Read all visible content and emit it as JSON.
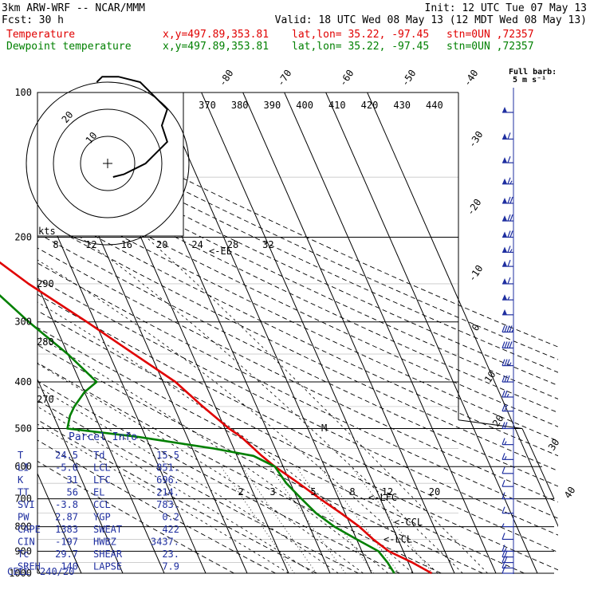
{
  "header": {
    "model": "3km ARW-WRF -- NCAR/MMM",
    "init": "Init: 12 UTC Tue 07 May 13",
    "fcst_label": "Fcst:",
    "fcst_value": "30 h",
    "valid": "Valid: 18 UTC Wed 08 May 13 (12 MDT Wed 08 May 13)",
    "temp_label": "Temperature",
    "dew_label": "Dewpoint temperature",
    "xy": "x,y=497.89,353.81",
    "latlon": "lat,lon= 35.22, -97.45",
    "stn": "stn=0UN ,72357",
    "barb_note_1": "Full barb:",
    "barb_note_2": "5 m s⁻¹"
  },
  "colors": {
    "temperature": "#e00000",
    "dewpoint": "#008000",
    "annotation": "#1f2fa0",
    "grid": "#000000"
  },
  "chart_data": {
    "type": "line",
    "title": "",
    "yscale": "log-pressure",
    "ylim": [
      1000,
      100
    ],
    "y_ticks": [
      "100",
      "200",
      "300",
      "400",
      "500",
      "600",
      "700",
      "800",
      "900",
      "1000"
    ],
    "isotherm_labels": [
      "-80",
      "-70",
      "-60",
      "-50",
      "-40",
      "-30",
      "-20",
      "-10",
      "0",
      "10",
      "20",
      "30",
      "40"
    ],
    "theta_labels": [
      "370",
      "380",
      "390",
      "400",
      "410",
      "420",
      "430",
      "440"
    ],
    "theta_left_labels": [
      "290",
      "280",
      "270"
    ],
    "speed_labels": [
      "8",
      "12",
      "16",
      "20",
      "24",
      "28",
      "32"
    ],
    "kts_label": "kts",
    "mixing_ratio_labels": [
      "2",
      "3",
      "5",
      "8",
      "12",
      "20"
    ],
    "hodograph_ring_labels": [
      "10",
      "20"
    ],
    "annotations": {
      "el": "<-EL",
      "lfc": "<-LFC",
      "ccl": "<-CCL",
      "lcl": "<-LCL",
      "mark": "M"
    },
    "series": [
      {
        "name": "Temperature",
        "key": "temperature",
        "points": [
          [
            1000,
            24.5
          ],
          [
            950,
            21
          ],
          [
            900,
            16.5
          ],
          [
            870,
            15
          ],
          [
            850,
            14
          ],
          [
            800,
            12
          ],
          [
            750,
            9
          ],
          [
            700,
            5.5
          ],
          [
            650,
            2
          ],
          [
            600,
            -2
          ],
          [
            570,
            -4
          ],
          [
            520,
            -7
          ],
          [
            500,
            -9
          ],
          [
            450,
            -13
          ],
          [
            400,
            -17
          ],
          [
            350,
            -24
          ],
          [
            300,
            -32
          ],
          [
            250,
            -42
          ],
          [
            210,
            -50
          ],
          [
            200,
            -53
          ],
          [
            185,
            -56
          ],
          [
            170,
            -58
          ],
          [
            150,
            -60
          ],
          [
            130,
            -62
          ],
          [
            115,
            -63
          ],
          [
            100,
            -63
          ]
        ]
      },
      {
        "name": "Dewpoint temperature",
        "key": "dewpoint",
        "points": [
          [
            1000,
            15.5
          ],
          [
            950,
            15
          ],
          [
            900,
            14
          ],
          [
            850,
            10
          ],
          [
            800,
            6
          ],
          [
            750,
            3
          ],
          [
            700,
            1
          ],
          [
            650,
            -1
          ],
          [
            600,
            -2
          ],
          [
            570,
            -6
          ],
          [
            550,
            -15
          ],
          [
            520,
            -32
          ],
          [
            500,
            -48
          ],
          [
            470,
            -46
          ],
          [
            450,
            -44
          ],
          [
            420,
            -40
          ],
          [
            400,
            -36
          ],
          [
            350,
            -40
          ],
          [
            300,
            -46
          ],
          [
            250,
            -52
          ],
          [
            200,
            -60
          ],
          [
            170,
            -64
          ],
          [
            150,
            -68
          ],
          [
            130,
            -70
          ],
          [
            115,
            -71
          ],
          [
            100,
            -71
          ]
        ]
      }
    ],
    "wind_barbs": [
      {
        "p": 110,
        "flags": 1,
        "full": 0,
        "half": 0
      },
      {
        "p": 125,
        "flags": 1,
        "full": 1,
        "half": 0
      },
      {
        "p": 140,
        "flags": 1,
        "full": 1,
        "half": 0
      },
      {
        "p": 155,
        "flags": 1,
        "full": 1,
        "half": 1
      },
      {
        "p": 170,
        "flags": 1,
        "full": 2,
        "half": 0
      },
      {
        "p": 185,
        "flags": 1,
        "full": 2,
        "half": 0
      },
      {
        "p": 200,
        "flags": 1,
        "full": 2,
        "half": 0
      },
      {
        "p": 215,
        "flags": 1,
        "full": 1,
        "half": 1
      },
      {
        "p": 230,
        "flags": 1,
        "full": 1,
        "half": 0
      },
      {
        "p": 250,
        "flags": 1,
        "full": 1,
        "half": 0
      },
      {
        "p": 270,
        "flags": 1,
        "full": 0,
        "half": 1
      },
      {
        "p": 290,
        "flags": 1,
        "full": 0,
        "half": 0
      },
      {
        "p": 315,
        "flags": 0,
        "full": 4,
        "half": 1
      },
      {
        "p": 340,
        "flags": 0,
        "full": 4,
        "half": 0
      },
      {
        "p": 370,
        "flags": 0,
        "full": 3,
        "half": 1
      },
      {
        "p": 400,
        "flags": 0,
        "full": 3,
        "half": 0
      },
      {
        "p": 430,
        "flags": 0,
        "full": 2,
        "half": 1
      },
      {
        "p": 460,
        "flags": 0,
        "full": 2,
        "half": 0
      },
      {
        "p": 500,
        "flags": 0,
        "full": 2,
        "half": 0
      },
      {
        "p": 540,
        "flags": 0,
        "full": 1,
        "half": 1
      },
      {
        "p": 580,
        "flags": 0,
        "full": 1,
        "half": 1
      },
      {
        "p": 620,
        "flags": 0,
        "full": 1,
        "half": 0
      },
      {
        "p": 660,
        "flags": 0,
        "full": 1,
        "half": 0
      },
      {
        "p": 700,
        "flags": 0,
        "full": 1,
        "half": 0
      },
      {
        "p": 750,
        "flags": 0,
        "full": 1,
        "half": 0
      },
      {
        "p": 800,
        "flags": 0,
        "full": 0,
        "half": 1
      },
      {
        "p": 850,
        "flags": 0,
        "full": 1,
        "half": 0
      },
      {
        "p": 900,
        "flags": 0,
        "full": 1,
        "half": 1
      },
      {
        "p": 925,
        "flags": 0,
        "full": 2,
        "half": 0
      },
      {
        "p": 950,
        "flags": 0,
        "full": 2,
        "half": 0
      },
      {
        "p": 975,
        "flags": 0,
        "full": 1,
        "half": 1
      },
      {
        "p": 1000,
        "flags": 0,
        "full": 1,
        "half": 0
      }
    ],
    "hodograph": [
      [
        2,
        -5
      ],
      [
        6,
        -4
      ],
      [
        10,
        -2
      ],
      [
        14,
        0
      ],
      [
        18,
        4
      ],
      [
        22,
        8
      ],
      [
        20,
        14
      ],
      [
        22,
        20
      ],
      [
        16,
        26
      ],
      [
        12,
        30
      ],
      [
        4,
        32
      ],
      [
        -2,
        32
      ],
      [
        -4,
        30
      ]
    ]
  },
  "parcel_info": {
    "title": "Parcel Info",
    "rows": [
      [
        {
          "k": "T",
          "v": "24.5"
        },
        {
          "k": "Td",
          "v": "15.5"
        }
      ],
      [
        {
          "k": "LI",
          "v": "-5.0"
        },
        {
          "k": "LCL",
          "v": "851."
        }
      ],
      [
        {
          "k": "K",
          "v": "31"
        },
        {
          "k": "LFC",
          "v": "696."
        }
      ],
      [
        {
          "k": "TT",
          "v": "56"
        },
        {
          "k": "EL",
          "v": "214."
        }
      ],
      [
        {
          "k": "SVI",
          "v": "-3.8"
        },
        {
          "k": "CCL",
          "v": "783."
        }
      ],
      [
        {
          "k": "PW",
          "v": "2.87"
        },
        {
          "k": "YGP",
          "v": "0.2"
        }
      ],
      [
        {
          "k": "CAPE",
          "v": "1383"
        },
        {
          "k": "SWEAT",
          "v": "422"
        }
      ],
      [
        {
          "k": "CIN",
          "v": "-197"
        },
        {
          "k": "HWBZ",
          "v": "3437."
        }
      ],
      [
        {
          "k": "Tc",
          "v": "29.7"
        },
        {
          "k": "SHEAR",
          "v": "23."
        }
      ],
      [
        {
          "k": "SREH",
          "v": "140"
        },
        {
          "k": "LAPSE",
          "v": "7.9"
        }
      ]
    ],
    "cell_label": "CELL",
    "cell_value": "240/20"
  }
}
